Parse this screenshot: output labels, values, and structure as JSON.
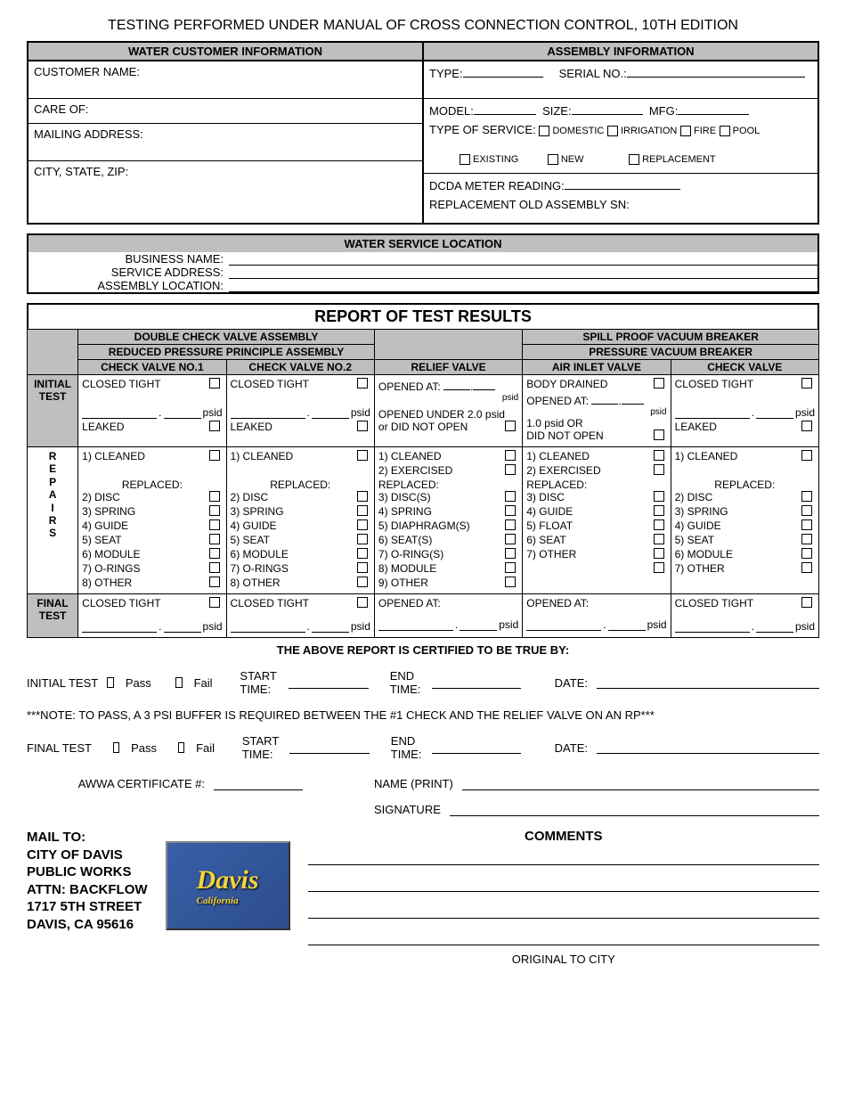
{
  "title": "TESTING PERFORMED UNDER MANUAL OF CROSS CONNECTION CONTROL, 10TH EDITION",
  "customer": {
    "header": "WATER CUSTOMER INFORMATION",
    "name_label": "CUSTOMER NAME:",
    "care_label": "CARE OF:",
    "mail_label": "MAILING ADDRESS:",
    "csz_label": "CITY, STATE, ZIP:"
  },
  "assembly": {
    "header": "ASSEMBLY INFORMATION",
    "type_label": "TYPE:",
    "serial_label": "SERIAL NO.:",
    "model_label": "MODEL:",
    "size_label": "SIZE:",
    "mfg_label": "MFG:",
    "tos_label": "TYPE OF SERVICE:",
    "domestic": "DOMESTIC",
    "irrigation": "IRRIGATION",
    "fire": "FIRE",
    "pool": "POOL",
    "existing": "EXISTING",
    "new": "NEW",
    "replacement": "REPLACEMENT",
    "dcda_label": "DCDA METER READING:",
    "replace_sn_label": "REPLACEMENT  OLD ASSEMBLY SN:"
  },
  "wsl": {
    "header": "WATER SERVICE LOCATION",
    "biz_label": "BUSINESS NAME:",
    "addr_label": "SERVICE ADDRESS:",
    "assy_label": "ASSEMBLY LOCATION:"
  },
  "report": {
    "header": "REPORT OF TEST RESULTS",
    "dcva": "DOUBLE CHECK VALVE ASSEMBLY",
    "svb": "SPILL PROOF VACUUM BREAKER",
    "rppa": "REDUCED PRESSURE PRINCIPLE ASSEMBLY",
    "pvb": "PRESSURE VACUUM BREAKER",
    "col1": "CHECK VALVE NO.1",
    "col2": "CHECK VALVE NO.2",
    "col3": "RELIEF VALVE",
    "col4": "AIR INLET VALVE",
    "col5": "CHECK VALVE",
    "initial_test": "INITIAL TEST",
    "repairs": "R\nE\nP\nA\nI\nR\nS",
    "final_test": "FINAL TEST",
    "closed_tight": "CLOSED TIGHT",
    "leaked": "LEAKED",
    "psid": "psid",
    "opened_at": "OPENED AT:",
    "opened_under": "OPENED UNDER 2.0 psid",
    "did_not_open": "or DID NOT OPEN",
    "body_drained": "BODY DRAINED",
    "onepsid": "1.0 psid OR",
    "didnotopen2": "DID NOT OPEN",
    "cleaned": "1) CLEANED",
    "exercised": "2) EXERCISED",
    "replaced": "REPLACED:",
    "cv_items": [
      "2) DISC",
      "3) SPRING",
      "4) GUIDE",
      "5) SEAT",
      "6) MODULE",
      "7) O-RINGS",
      "8) OTHER"
    ],
    "rv_items": [
      "3) DISC(S)",
      "4) SPRING",
      "5) DIAPHRAGM(S)",
      "6) SEAT(S)",
      "7) O-RING(S)",
      "8) MODULE",
      "9) OTHER"
    ],
    "av_items": [
      "3) DISC",
      "4) GUIDE",
      "5) FLOAT",
      "6) SEAT",
      "7) OTHER",
      ""
    ],
    "cv5_items": [
      "2) DISC",
      "3) SPRING",
      "4) GUIDE",
      "5) SEAT",
      "6) MODULE",
      "7) OTHER"
    ],
    "cert": "THE ABOVE REPORT IS CERTIFIED TO BE TRUE BY:"
  },
  "sig": {
    "init_label": "INITIAL TEST",
    "final_label": "FINAL TEST",
    "pass": "Pass",
    "fail": "Fail",
    "start": "START TIME:",
    "end": "END TIME:",
    "date": "DATE:",
    "note": "***NOTE:  TO PASS, A 3 PSI BUFFER IS REQUIRED BETWEEN THE #1 CHECK AND THE RELIEF VALVE ON AN RP***",
    "awwa": "AWWA CERTIFICATE #:",
    "nameprint": "NAME (PRINT)",
    "signature": "SIGNATURE"
  },
  "footer": {
    "mailto": "MAIL TO:",
    "l1": "CITY OF DAVIS",
    "l2": "PUBLIC WORKS",
    "l3": "ATTN: BACKFLOW",
    "l4": "1717 5TH STREET",
    "l5": "DAVIS, CA 95616",
    "logo_text": "Davis",
    "logo_sub": "California",
    "comments": "COMMENTS",
    "original": "ORIGINAL TO CITY"
  }
}
